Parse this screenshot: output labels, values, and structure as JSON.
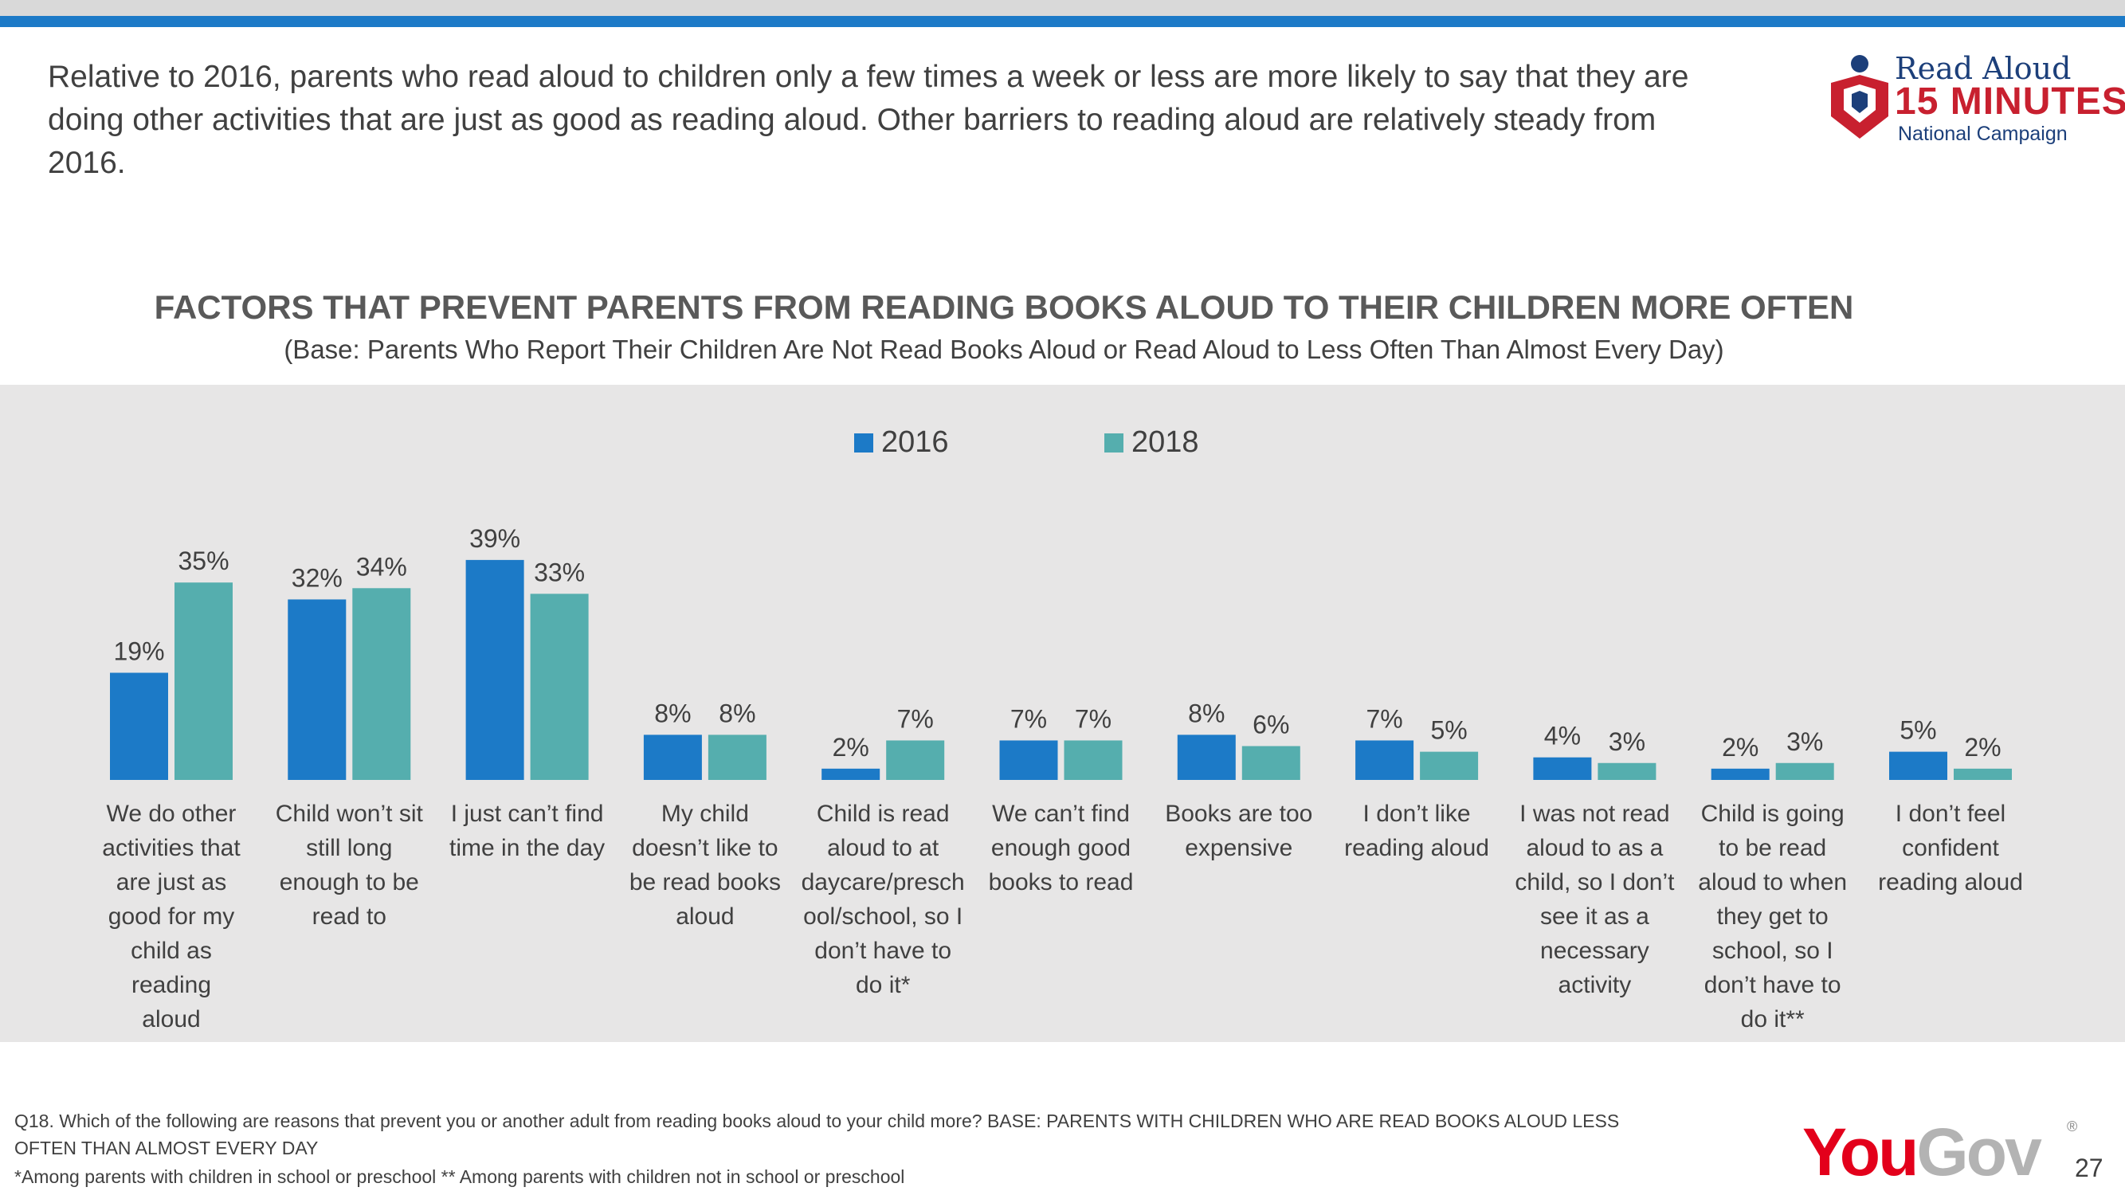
{
  "headline": "Relative to 2016, parents who read aloud to children only a few times a week or less are more likely to say that they are doing other activities that are just as good as reading aloud. Other barriers to reading aloud are relatively steady from 2016.",
  "logo": {
    "line1": "Read Aloud",
    "line2": "15 MINUTES",
    "line3": "National Campaign",
    "colors": {
      "red": "#c8202f",
      "navy": "#1c3f7a"
    }
  },
  "chart_data": {
    "type": "bar",
    "title": "FACTORS THAT PREVENT PARENTS FROM READING BOOKS ALOUD TO THEIR CHILDREN MORE OFTEN",
    "subtitle": "(Base: Parents Who Report Their Children Are Not Read Books Aloud or Read Aloud to Less Often Than Almost Every Day)",
    "categories": [
      "We do other activities that are just as good for my child as reading aloud",
      "Child won’t sit still long enough to be read to",
      "I just can’t find time in the day",
      "My child doesn’t like to be read books aloud",
      "Child is read aloud to at daycare/preschool/school, so I don’t have to do it*",
      "We can’t find enough good books to read",
      "Books are too expensive",
      "I don’t like reading aloud",
      "I was not read aloud to as a child, so I don’t see it as a necessary activity",
      "Child is going to be read aloud to when they get to school, so I don’t have to do it**",
      "I don’t feel confident reading aloud"
    ],
    "category_lines": [
      [
        "We do other",
        "activities that",
        "are just as",
        "good for my",
        "child as reading",
        "aloud"
      ],
      [
        "Child won’t sit",
        "still long",
        "enough to be",
        "read to"
      ],
      [
        "I just can’t find",
        "time in the day"
      ],
      [
        "My child",
        "doesn’t like to",
        "be read books",
        "aloud"
      ],
      [
        "Child is read",
        "aloud to at",
        "daycare/presch",
        "ool/school, so I",
        "don’t have to",
        "do it*"
      ],
      [
        "We can’t find",
        "enough good",
        "books to read"
      ],
      [
        "Books are too",
        "expensive"
      ],
      [
        "I don’t like",
        "reading aloud"
      ],
      [
        "I was not read",
        "aloud to as a",
        "child, so I don’t",
        "see it as a",
        "necessary",
        "activity"
      ],
      [
        "Child is going",
        "to be read",
        "aloud to when",
        "they get to",
        "school, so I",
        "don’t have to",
        "do it**"
      ],
      [
        "I don’t feel",
        "confident",
        "reading aloud"
      ]
    ],
    "series": [
      {
        "name": "2016",
        "color": "#1c7ac7",
        "values": [
          19,
          32,
          39,
          8,
          2,
          7,
          8,
          7,
          4,
          2,
          5
        ]
      },
      {
        "name": "2018",
        "color": "#55aeae",
        "values": [
          35,
          34,
          33,
          8,
          7,
          7,
          6,
          5,
          3,
          3,
          2
        ]
      }
    ],
    "value_suffix": "%",
    "legend_position": "top-center",
    "grid": false
  },
  "footnotes": {
    "line1": "Q18. Which of the following are reasons that prevent you or another adult from reading books aloud to your child more? BASE: PARENTS WITH CHILDREN WHO ARE READ BOOKS ALOUD LESS",
    "line2": "OFTEN THAN ALMOST EVERY DAY",
    "line3": "*Among parents with children in school or preschool ** Among parents with children not in school or preschool"
  },
  "footer": {
    "brand_you": "You",
    "brand_gov": "Gov",
    "brand_mark": "®",
    "page_number": "27"
  }
}
